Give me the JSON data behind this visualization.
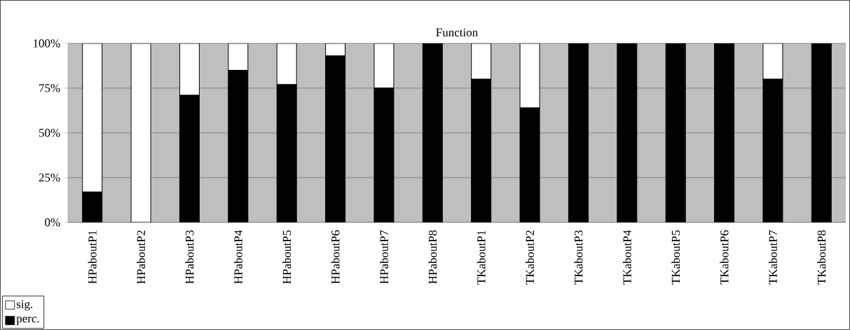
{
  "chart_data": {
    "type": "bar",
    "title": "Function",
    "stacked": true,
    "categories": [
      "HPaboutP1",
      "HPaboutP2",
      "HPaboutP3",
      "HPaboutP4",
      "HPaboutP5",
      "HPaboutP6",
      "HPaboutP7",
      "HPaboutP8",
      "TKaboutP1",
      "TKaboutP2",
      "TKaboutP3",
      "TKaboutP4",
      "TKaboutP5",
      "TKaboutP6",
      "TKaboutP7",
      "TKaboutP8"
    ],
    "series": [
      {
        "name": "perc.",
        "color": "#000000",
        "values": [
          17,
          0,
          71,
          85,
          77,
          93,
          75,
          100,
          80,
          64,
          100,
          100,
          100,
          100,
          80,
          100
        ]
      },
      {
        "name": "sig.",
        "color": "#ffffff",
        "values": [
          83,
          100,
          29,
          15,
          23,
          7,
          25,
          0,
          20,
          36,
          0,
          0,
          0,
          0,
          20,
          0
        ]
      }
    ],
    "ylim": [
      0,
      100
    ],
    "yticks": [
      {
        "value": 0,
        "label": "0%"
      },
      {
        "value": 25,
        "label": "25%"
      },
      {
        "value": 50,
        "label": "50%"
      },
      {
        "value": 75,
        "label": "75%"
      },
      {
        "value": 100,
        "label": "100%"
      }
    ],
    "grid": "y",
    "legend": "bottom left"
  }
}
